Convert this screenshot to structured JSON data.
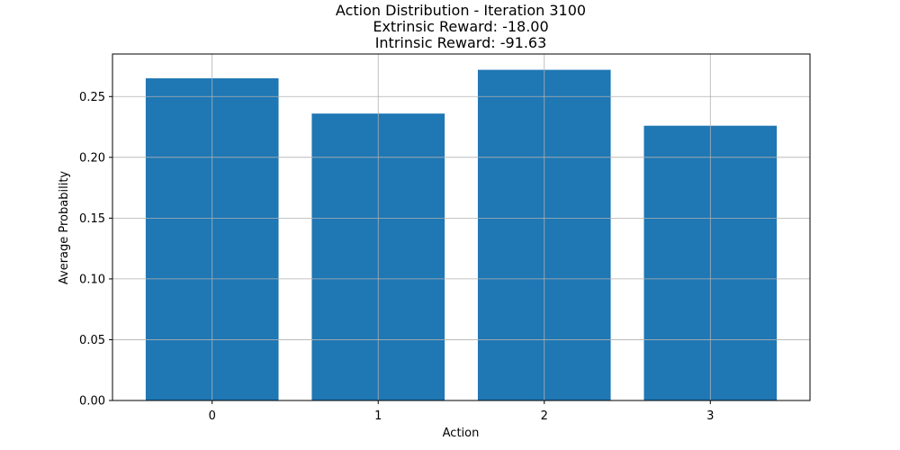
{
  "chart_data": {
    "type": "bar",
    "title_lines": [
      "Action Distribution - Iteration 3100",
      "Extrinsic Reward: -18.00",
      "Intrinsic Reward: -91.63"
    ],
    "xlabel": "Action",
    "ylabel": "Average Probability",
    "categories": [
      "0",
      "1",
      "2",
      "3"
    ],
    "values": [
      0.265,
      0.236,
      0.272,
      0.226
    ],
    "ylim": [
      0,
      0.285
    ],
    "yticks": [
      0.0,
      0.05,
      0.1,
      0.15,
      0.2,
      0.25
    ],
    "ytick_labels": [
      "0.00",
      "0.05",
      "0.10",
      "0.15",
      "0.20",
      "0.25"
    ],
    "grid": true,
    "bar_color": "#1f77b4",
    "grid_color": "#b0b0b0"
  }
}
